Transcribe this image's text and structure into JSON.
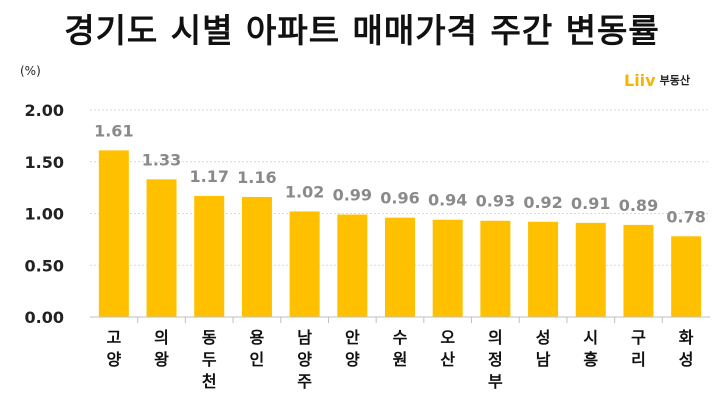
{
  "chart_data": {
    "type": "bar",
    "title": "경기도 시별 아파트 매매가격 주간 변동률",
    "unit": "(%)",
    "categories": [
      "고양",
      "의왕",
      "동두천",
      "용인",
      "남양주",
      "안양",
      "수원",
      "오산",
      "의정부",
      "성남",
      "시흥",
      "구리",
      "화성"
    ],
    "values": [
      1.61,
      1.33,
      1.17,
      1.16,
      1.02,
      0.99,
      0.96,
      0.94,
      0.93,
      0.92,
      0.91,
      0.89,
      0.78
    ],
    "data_labels": [
      "1.61",
      "1.33",
      "1.17",
      "1.16",
      "1.02",
      "0.99",
      "0.96",
      "0.94",
      "0.93",
      "0.92",
      "0.91",
      "0.89",
      "0.78"
    ],
    "ylim": [
      0,
      2.0
    ],
    "yticks": [
      "0.00",
      "0.50",
      "1.00",
      "1.50",
      "2.00"
    ],
    "ytick_values": [
      0,
      0.5,
      1.0,
      1.5,
      2.0
    ],
    "grid": true,
    "bar_color": "#ffc000",
    "xlabel": "",
    "ylabel": ""
  },
  "logo": {
    "mark": "Liiv",
    "text": "부동산",
    "color": "#f2b705"
  }
}
